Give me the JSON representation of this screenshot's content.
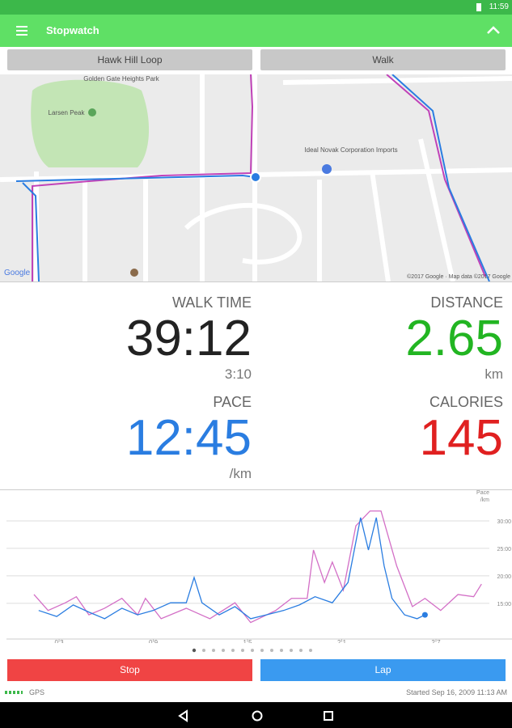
{
  "status_bar": {
    "time": "11:59"
  },
  "app_bar": {
    "title": "Stopwatch"
  },
  "selectors": [
    "Hawk Hill Loop",
    "Walk"
  ],
  "map": {
    "labels": [
      "Golden Gate Heights Park",
      "Larsen Peak",
      "Ideal Novak Corporation Imports"
    ],
    "logo": "Google",
    "attribution": "©2017 Google · Map data ©2017 Google"
  },
  "stats": [
    {
      "label": "WALK TIME",
      "value": "39:12",
      "sub": "3:10"
    },
    {
      "label": "DISTANCE",
      "value": "2.65",
      "sub": "km"
    },
    {
      "label": "PACE",
      "value": "12:45",
      "sub": "/km"
    },
    {
      "label": "CALORIES",
      "value": "145"
    }
  ],
  "chart_data": {
    "type": "line",
    "y_label": "Pace",
    "y_unit": "/km",
    "xlim": [
      -0.35,
      30.4
    ],
    "xticks": [
      {
        "value": 3,
        "label": "0:3"
      },
      {
        "value": 9,
        "label": "0:9"
      },
      {
        "value": 15,
        "label": "1:5"
      },
      {
        "value": 21,
        "label": "2:1"
      },
      {
        "value": 27,
        "label": "2:7"
      }
    ],
    "ylim": [
      8.5,
      35
    ],
    "yticks": [
      {
        "value": 30,
        "label": "30:00"
      },
      {
        "value": 25,
        "label": "25:00"
      },
      {
        "value": 20,
        "label": "20:00"
      },
      {
        "value": 15,
        "label": "15:00"
      }
    ],
    "grid": true,
    "series": [
      {
        "color": "#d36fc6",
        "x": [
          1.4,
          2.3,
          3.4,
          4.1,
          4.9,
          5.9,
          7.0,
          8.0,
          8.5,
          9.5,
          11.1,
          12.6,
          14.2,
          15.2,
          16.8,
          17.8,
          18.8,
          19.2,
          19.9,
          20.4,
          21.1,
          21.9,
          22.8,
          23.5,
          24.5,
          25.5,
          26.3,
          27.3,
          28.4,
          29.4,
          29.9
        ],
        "values": [
          16.6,
          13.7,
          15.1,
          16.2,
          12.9,
          14.1,
          15.9,
          12.9,
          15.9,
          12.2,
          14.1,
          12.2,
          15.1,
          11.5,
          13.7,
          15.9,
          15.9,
          24.7,
          18.8,
          22.5,
          17.4,
          29.1,
          31.8,
          31.8,
          21.8,
          14.4,
          15.9,
          13.7,
          16.6,
          16.2,
          18.5
        ]
      },
      {
        "color": "#2a7de1",
        "x": [
          1.7,
          2.85,
          3.9,
          4.9,
          5.9,
          7.0,
          8.0,
          9.0,
          10.1,
          11.1,
          11.6,
          12.1,
          13.2,
          14.2,
          15.2,
          16.2,
          17.3,
          18.3,
          19.3,
          20.4,
          21.4,
          22.2,
          22.7,
          23.2,
          23.7,
          24.2,
          25.0,
          25.8,
          26.3
        ],
        "values": [
          13.7,
          12.6,
          14.7,
          13.4,
          12.2,
          14.1,
          12.9,
          13.7,
          15.1,
          15.1,
          19.7,
          15.1,
          12.9,
          14.4,
          12.2,
          12.9,
          13.7,
          14.7,
          16.2,
          15.1,
          18.8,
          30.6,
          24.7,
          30.6,
          21.8,
          15.9,
          12.9,
          12.2,
          12.9
        ]
      }
    ]
  },
  "buttons": [
    "Stop",
    "Lap"
  ],
  "footer": {
    "gps": "GPS",
    "started": "Started Sep 16, 2009 11:13 AM"
  }
}
